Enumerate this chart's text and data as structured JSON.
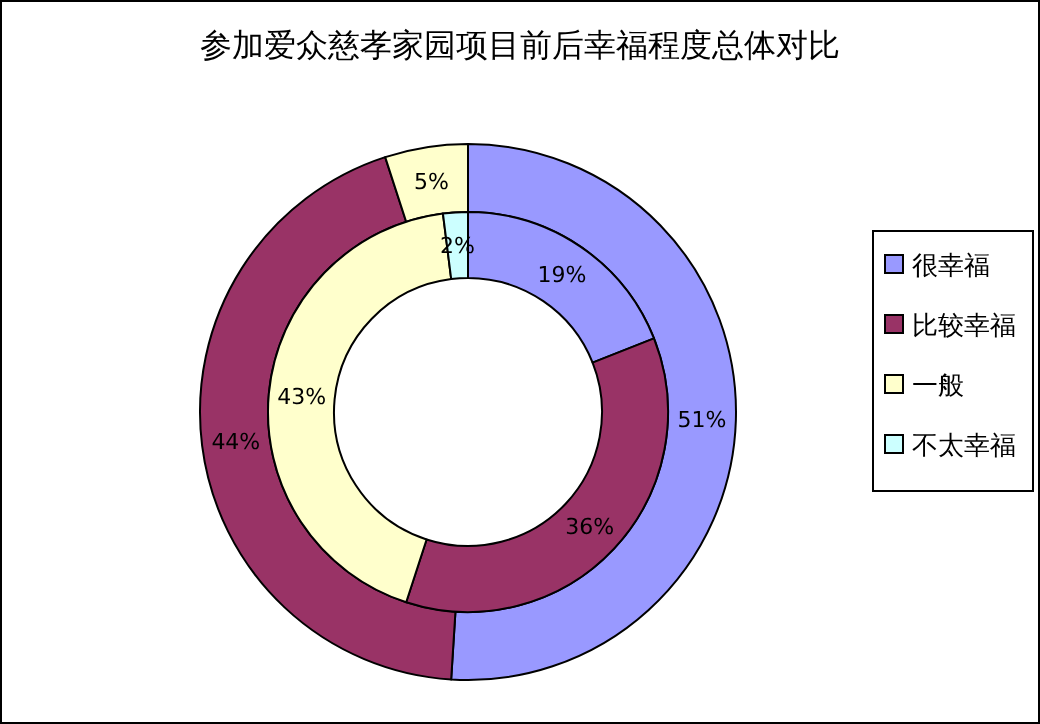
{
  "chart_data": {
    "type": "donut",
    "title": "参加爱众慈孝家园项目前后幸福程度总体对比",
    "categories": [
      "很幸福",
      "比较幸福",
      "一般",
      "不太幸福"
    ],
    "colors": [
      "#9999ff",
      "#993366",
      "#ffffcc",
      "#ccffff"
    ],
    "series": [
      {
        "values": [
          51,
          44,
          5,
          null
        ],
        "value_labels": [
          "51%",
          "44%",
          "5%",
          null
        ]
      },
      {
        "values": [
          19,
          36,
          43,
          2
        ],
        "value_labels": [
          "19%",
          "36%",
          "43%",
          "2%"
        ]
      }
    ],
    "legend": "right"
  }
}
